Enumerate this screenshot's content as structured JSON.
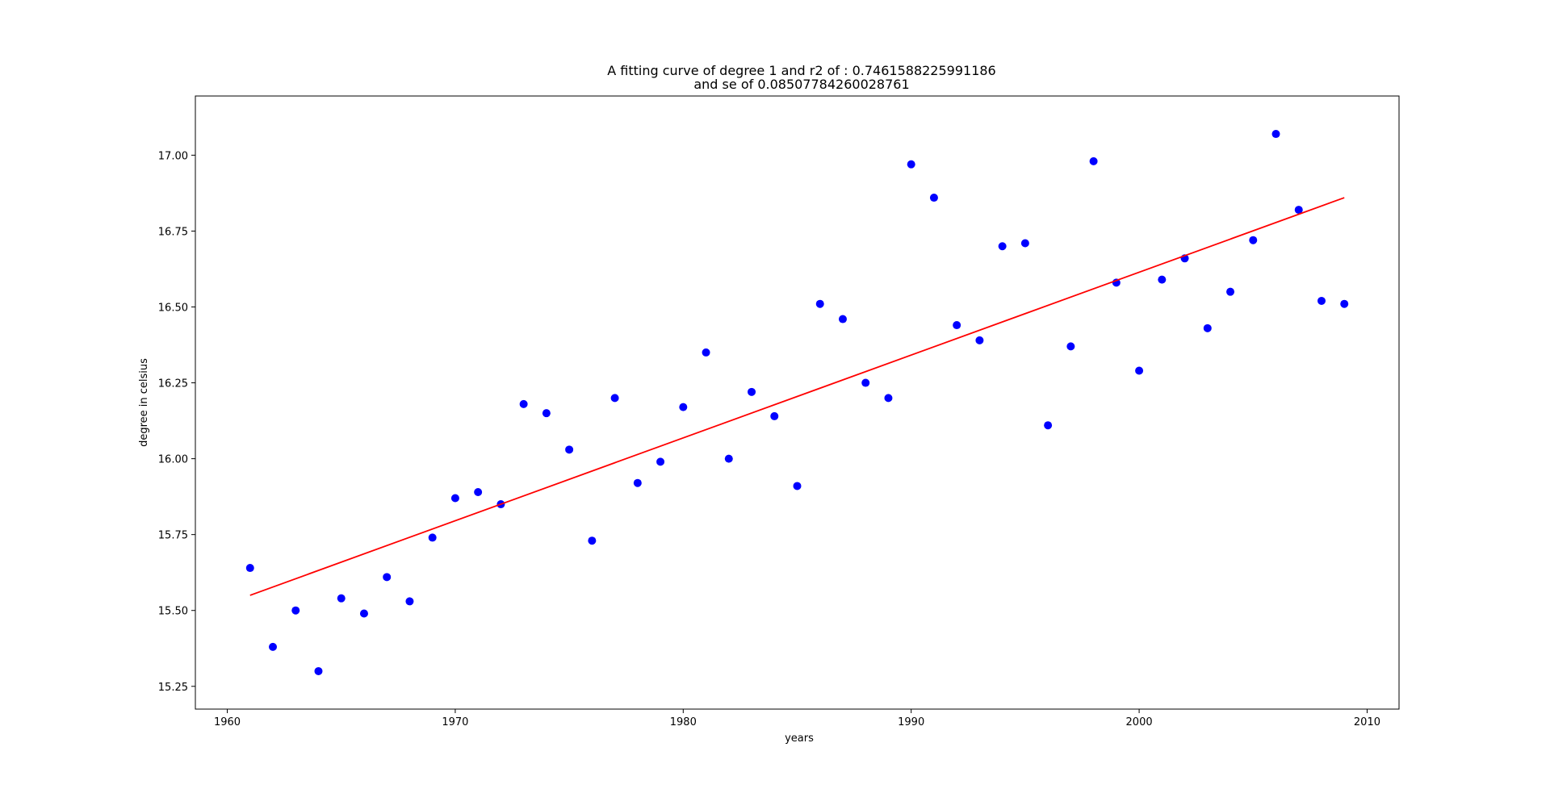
{
  "chart_data": {
    "type": "scatter",
    "title": "A fitting curve of degree 1  and r2 of : 0.7461588225991186",
    "subtitle": "and se of 0.08507784260028761",
    "xlabel": "years",
    "ylabel": "degree in celsius",
    "xlim": [
      1958.6,
      2011.4
    ],
    "ylim": [
      15.175,
      17.195
    ],
    "xticks": [
      1960,
      1970,
      1980,
      1990,
      2000,
      2010
    ],
    "yticks": [
      15.25,
      15.5,
      15.75,
      16.0,
      16.25,
      16.5,
      16.75,
      17.0
    ],
    "ytick_labels": [
      "15.25",
      "15.50",
      "15.75",
      "16.00",
      "16.25",
      "16.50",
      "16.75",
      "17.00"
    ],
    "grid": false,
    "legend": false,
    "colors": {
      "points": "#0000ff",
      "fit_line": "#ff0000"
    },
    "series": [
      {
        "kind": "points",
        "x": [
          1961,
          1962,
          1963,
          1964,
          1965,
          1966,
          1967,
          1968,
          1969,
          1970,
          1971,
          1972,
          1973,
          1974,
          1975,
          1976,
          1977,
          1978,
          1979,
          1980,
          1981,
          1982,
          1983,
          1984,
          1985,
          1986,
          1987,
          1988,
          1989,
          1990,
          1991,
          1992,
          1993,
          1994,
          1995,
          1996,
          1997,
          1998,
          1999,
          2000,
          2001,
          2002,
          2003,
          2004,
          2005,
          2006,
          2007,
          2008,
          2009
        ],
        "y": [
          15.64,
          15.38,
          15.5,
          15.3,
          15.54,
          15.49,
          15.61,
          15.53,
          15.74,
          15.87,
          15.89,
          15.85,
          16.18,
          16.15,
          16.03,
          15.73,
          16.2,
          15.92,
          15.99,
          16.17,
          16.35,
          16.0,
          16.22,
          16.14,
          15.91,
          16.51,
          16.46,
          16.25,
          16.2,
          16.97,
          16.86,
          16.44,
          16.39,
          16.7,
          16.71,
          16.11,
          16.37,
          16.98,
          16.58,
          16.29,
          16.59,
          16.66,
          16.43,
          16.55,
          16.72,
          17.07,
          16.82,
          16.52,
          16.51
        ]
      },
      {
        "kind": "line",
        "x": [
          1961,
          2009
        ],
        "y": [
          15.55,
          16.86
        ]
      }
    ]
  }
}
